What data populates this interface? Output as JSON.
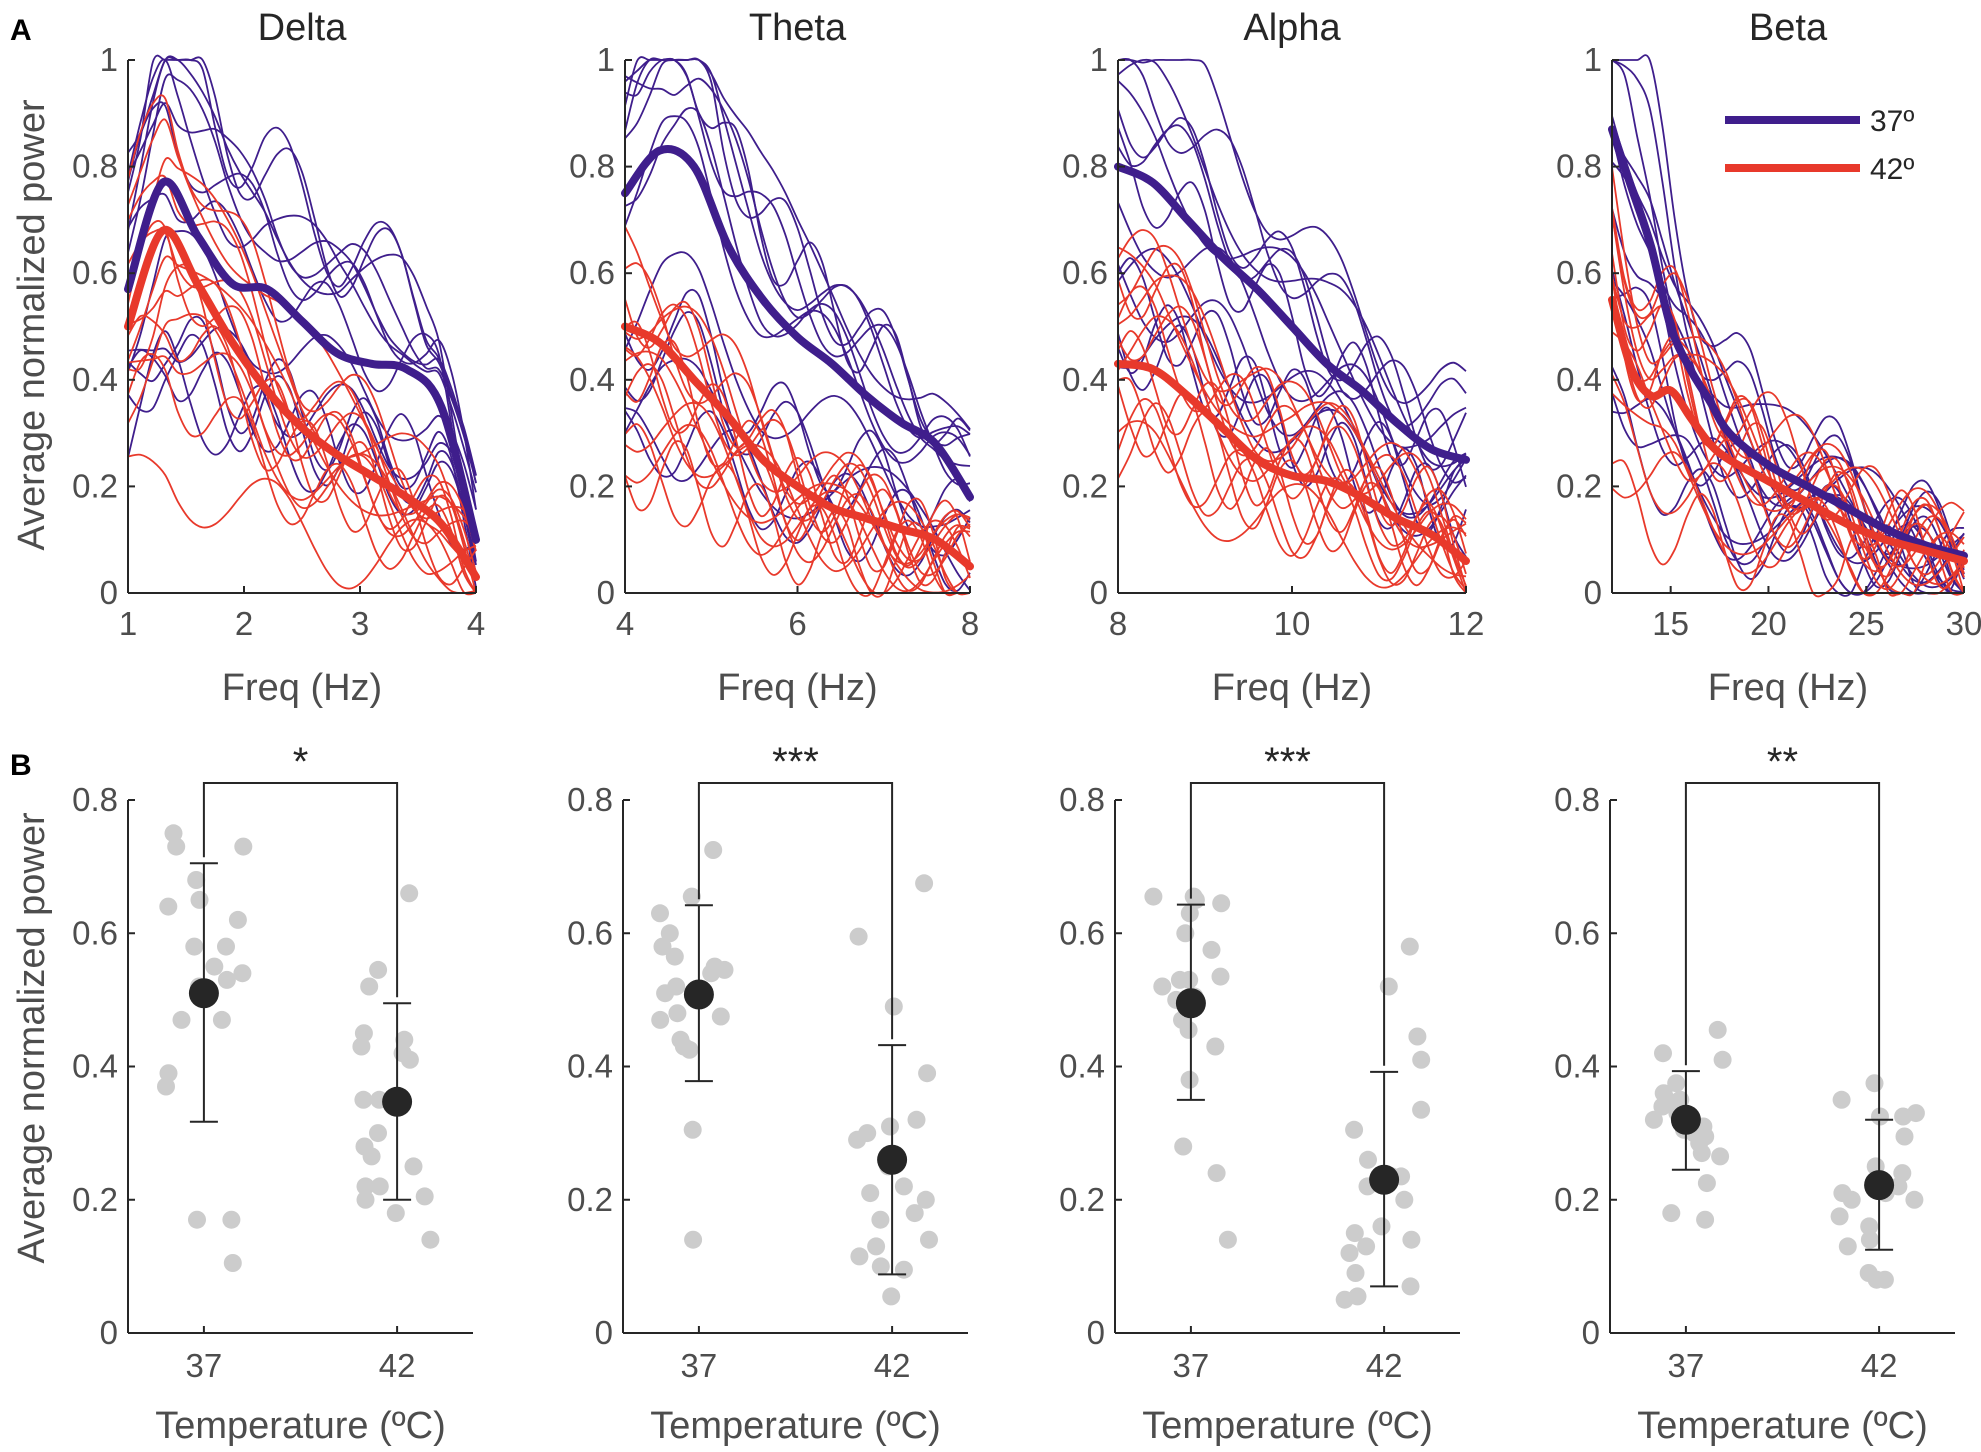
{
  "figure": {
    "panel_a_label": "A",
    "panel_b_label": "B",
    "colors": {
      "c37": "#3f1e8c",
      "c42": "#e8392b",
      "dots": "#cccccc",
      "mean": "#262626",
      "axis": "#262626"
    }
  },
  "legend": {
    "label_37": "37º",
    "label_42": "42º"
  },
  "chart_data": [
    {
      "type": "line",
      "panel": "A",
      "title": "Delta",
      "xlabel": "Freq (Hz)",
      "ylabel": "Average normalized power",
      "xlim": [
        1,
        4
      ],
      "ylim": [
        0,
        1
      ],
      "xticks": [
        1,
        2,
        3,
        4
      ],
      "xtick_labels": [
        "1",
        "2",
        "3",
        "4"
      ],
      "yticks": [
        0,
        0.2,
        0.4,
        0.6,
        0.8,
        1
      ],
      "ytick_labels": [
        "0",
        "0.2",
        "0.4",
        "0.6",
        "0.8",
        "1"
      ],
      "series": [
        {
          "name": "37º",
          "x": [
            1,
            1.3,
            1.6,
            1.9,
            2.2,
            2.5,
            2.8,
            3.1,
            3.4,
            3.7,
            4
          ],
          "values": [
            0.57,
            0.77,
            0.67,
            0.58,
            0.57,
            0.51,
            0.45,
            0.43,
            0.42,
            0.35,
            0.1
          ]
        },
        {
          "name": "42º",
          "x": [
            1,
            1.3,
            1.6,
            1.9,
            2.2,
            2.5,
            2.8,
            3.1,
            3.4,
            3.7,
            4
          ],
          "values": [
            0.5,
            0.68,
            0.58,
            0.47,
            0.38,
            0.31,
            0.26,
            0.22,
            0.18,
            0.13,
            0.03
          ]
        }
      ]
    },
    {
      "type": "line",
      "panel": "A",
      "title": "Theta",
      "xlabel": "Freq (Hz)",
      "ylabel": "",
      "xlim": [
        4,
        8
      ],
      "ylim": [
        0,
        1
      ],
      "xticks": [
        4,
        6,
        8
      ],
      "xtick_labels": [
        "4",
        "6",
        "8"
      ],
      "yticks": [
        0,
        0.2,
        0.4,
        0.6,
        0.8,
        1
      ],
      "ytick_labels": [
        "0",
        "0.2",
        "0.4",
        "0.6",
        "0.8",
        "1"
      ],
      "series": [
        {
          "name": "37º",
          "x": [
            4,
            4.4,
            4.8,
            5.2,
            5.6,
            6,
            6.4,
            6.8,
            7.2,
            7.6,
            8
          ],
          "values": [
            0.75,
            0.83,
            0.8,
            0.65,
            0.55,
            0.48,
            0.43,
            0.37,
            0.32,
            0.28,
            0.18
          ]
        },
        {
          "name": "42º",
          "x": [
            4,
            4.4,
            4.8,
            5.2,
            5.6,
            6,
            6.4,
            6.8,
            7.2,
            7.6,
            8
          ],
          "values": [
            0.5,
            0.47,
            0.4,
            0.33,
            0.25,
            0.2,
            0.16,
            0.14,
            0.12,
            0.1,
            0.05
          ]
        }
      ]
    },
    {
      "type": "line",
      "panel": "A",
      "title": "Alpha",
      "xlabel": "Freq (Hz)",
      "ylabel": "",
      "xlim": [
        8,
        12
      ],
      "ylim": [
        0,
        1
      ],
      "xticks": [
        8,
        10,
        12
      ],
      "xtick_labels": [
        "8",
        "10",
        "12"
      ],
      "yticks": [
        0,
        0.2,
        0.4,
        0.6,
        0.8,
        1
      ],
      "ytick_labels": [
        "0",
        "0.2",
        "0.4",
        "0.6",
        "0.8",
        "1"
      ],
      "series": [
        {
          "name": "37º",
          "x": [
            8,
            8.4,
            8.8,
            9.2,
            9.6,
            10,
            10.4,
            10.8,
            11.2,
            11.6,
            12
          ],
          "values": [
            0.8,
            0.77,
            0.7,
            0.63,
            0.57,
            0.5,
            0.43,
            0.38,
            0.32,
            0.27,
            0.25
          ]
        },
        {
          "name": "42º",
          "x": [
            8,
            8.4,
            8.8,
            9.2,
            9.6,
            10,
            10.4,
            10.8,
            11.2,
            11.6,
            12
          ],
          "values": [
            0.43,
            0.42,
            0.37,
            0.31,
            0.25,
            0.22,
            0.21,
            0.18,
            0.14,
            0.11,
            0.06
          ]
        }
      ]
    },
    {
      "type": "line",
      "panel": "A",
      "title": "Beta",
      "xlabel": "Freq (Hz)",
      "ylabel": "",
      "xlim": [
        12,
        30
      ],
      "ylim": [
        0,
        1
      ],
      "xticks": [
        15,
        20,
        25,
        30
      ],
      "xtick_labels": [
        "15",
        "20",
        "25",
        "30"
      ],
      "yticks": [
        0,
        0.2,
        0.4,
        0.6,
        0.8,
        1
      ],
      "ytick_labels": [
        "0",
        "0.2",
        "0.4",
        "0.6",
        "0.8",
        "1"
      ],
      "series": [
        {
          "name": "37º",
          "x": [
            12,
            13,
            14,
            15,
            16,
            17,
            18,
            20,
            22,
            24,
            26,
            28,
            30
          ],
          "values": [
            0.87,
            0.76,
            0.65,
            0.5,
            0.42,
            0.36,
            0.3,
            0.24,
            0.2,
            0.16,
            0.12,
            0.09,
            0.07
          ]
        },
        {
          "name": "42º",
          "x": [
            12,
            13,
            14,
            15,
            16,
            17,
            18,
            20,
            22,
            24,
            26,
            28,
            30
          ],
          "values": [
            0.55,
            0.42,
            0.37,
            0.38,
            0.33,
            0.28,
            0.25,
            0.21,
            0.17,
            0.13,
            0.1,
            0.08,
            0.06
          ]
        }
      ]
    },
    {
      "type": "scatter",
      "panel": "B",
      "band": "Delta",
      "xlabel": "Temperature (ºC)",
      "ylabel": "Average normalized power",
      "categories": [
        "37",
        "42"
      ],
      "ylim": [
        0,
        0.8
      ],
      "yticks": [
        0,
        0.2,
        0.4,
        0.6,
        0.8
      ],
      "ytick_labels": [
        "0",
        "0.2",
        "0.4",
        "0.6",
        "0.8"
      ],
      "significance": "*",
      "groups": [
        {
          "name": "37",
          "mean": 0.51,
          "err_low": 0.317,
          "err_high": 0.705,
          "points": [
            0.75,
            0.73,
            0.73,
            0.68,
            0.65,
            0.64,
            0.62,
            0.52,
            0.55,
            0.54,
            0.53,
            0.58,
            0.58,
            0.47,
            0.47,
            0.39,
            0.37,
            0.17,
            0.17,
            0.105
          ]
        },
        {
          "name": "42",
          "mean": 0.347,
          "err_low": 0.2,
          "err_high": 0.495,
          "points": [
            0.66,
            0.545,
            0.52,
            0.45,
            0.44,
            0.42,
            0.41,
            0.35,
            0.35,
            0.3,
            0.28,
            0.265,
            0.22,
            0.22,
            0.205,
            0.2,
            0.18,
            0.14,
            0.43,
            0.25
          ]
        }
      ]
    },
    {
      "type": "scatter",
      "panel": "B",
      "band": "Theta",
      "xlabel": "Temperature (ºC)",
      "ylabel": "",
      "categories": [
        "37",
        "42"
      ],
      "ylim": [
        0,
        0.8
      ],
      "yticks": [
        0,
        0.2,
        0.4,
        0.6,
        0.8
      ],
      "ytick_labels": [
        "0",
        "0.2",
        "0.4",
        "0.6",
        "0.8"
      ],
      "significance": "***",
      "groups": [
        {
          "name": "37",
          "mean": 0.508,
          "err_low": 0.378,
          "err_high": 0.642,
          "points": [
            0.725,
            0.655,
            0.63,
            0.6,
            0.565,
            0.55,
            0.545,
            0.54,
            0.52,
            0.5,
            0.48,
            0.475,
            0.47,
            0.44,
            0.43,
            0.425,
            0.305,
            0.14,
            0.51,
            0.58
          ]
        },
        {
          "name": "42",
          "mean": 0.26,
          "err_low": 0.088,
          "err_high": 0.432,
          "points": [
            0.675,
            0.595,
            0.49,
            0.39,
            0.32,
            0.3,
            0.29,
            0.21,
            0.2,
            0.18,
            0.17,
            0.14,
            0.13,
            0.115,
            0.1,
            0.095,
            0.055,
            0.25,
            0.31,
            0.22
          ]
        }
      ]
    },
    {
      "type": "scatter",
      "panel": "B",
      "band": "Alpha",
      "xlabel": "Temperature (ºC)",
      "ylabel": "",
      "categories": [
        "37",
        "42"
      ],
      "ylim": [
        0,
        0.8
      ],
      "yticks": [
        0,
        0.2,
        0.4,
        0.6,
        0.8
      ],
      "ytick_labels": [
        "0",
        "0.2",
        "0.4",
        "0.6",
        "0.8"
      ],
      "significance": "***",
      "groups": [
        {
          "name": "37",
          "mean": 0.495,
          "err_low": 0.35,
          "err_high": 0.643,
          "points": [
            0.655,
            0.655,
            0.65,
            0.645,
            0.575,
            0.535,
            0.53,
            0.53,
            0.52,
            0.505,
            0.5,
            0.455,
            0.43,
            0.38,
            0.28,
            0.24,
            0.14,
            0.63,
            0.47,
            0.6
          ]
        },
        {
          "name": "42",
          "mean": 0.23,
          "err_low": 0.07,
          "err_high": 0.392,
          "points": [
            0.58,
            0.52,
            0.445,
            0.41,
            0.335,
            0.305,
            0.235,
            0.235,
            0.22,
            0.16,
            0.15,
            0.14,
            0.13,
            0.12,
            0.09,
            0.07,
            0.055,
            0.05,
            0.2,
            0.26
          ]
        }
      ]
    },
    {
      "type": "scatter",
      "panel": "B",
      "band": "Beta",
      "xlabel": "Temperature (ºC)",
      "ylabel": "",
      "categories": [
        "37",
        "42"
      ],
      "ylim": [
        0,
        0.8
      ],
      "yticks": [
        0,
        0.2,
        0.4,
        0.6,
        0.8
      ],
      "ytick_labels": [
        "0",
        "0.2",
        "0.4",
        "0.6",
        "0.8"
      ],
      "significance": "**",
      "groups": [
        {
          "name": "37",
          "mean": 0.32,
          "err_low": 0.245,
          "err_high": 0.393,
          "points": [
            0.455,
            0.42,
            0.41,
            0.375,
            0.36,
            0.35,
            0.34,
            0.33,
            0.31,
            0.305,
            0.295,
            0.285,
            0.27,
            0.265,
            0.225,
            0.18,
            0.17,
            0.32,
            0.3,
            0.35
          ]
        },
        {
          "name": "42",
          "mean": 0.222,
          "err_low": 0.125,
          "err_high": 0.32,
          "points": [
            0.375,
            0.35,
            0.33,
            0.325,
            0.325,
            0.295,
            0.25,
            0.22,
            0.21,
            0.21,
            0.2,
            0.2,
            0.175,
            0.16,
            0.14,
            0.13,
            0.09,
            0.08,
            0.08,
            0.24
          ]
        }
      ]
    }
  ]
}
